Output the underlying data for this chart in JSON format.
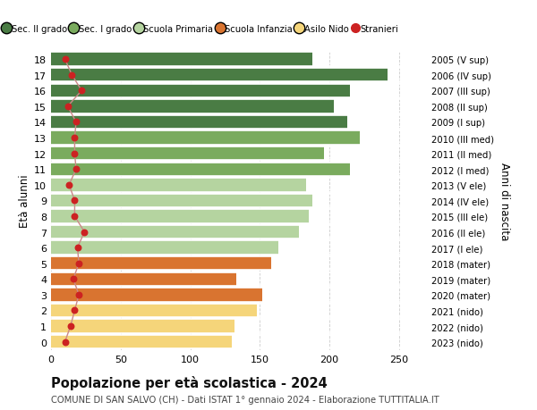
{
  "ages": [
    18,
    17,
    16,
    15,
    14,
    13,
    12,
    11,
    10,
    9,
    8,
    7,
    6,
    5,
    4,
    3,
    2,
    1,
    0
  ],
  "right_labels": [
    "2005 (V sup)",
    "2006 (IV sup)",
    "2007 (III sup)",
    "2008 (II sup)",
    "2009 (I sup)",
    "2010 (III med)",
    "2011 (II med)",
    "2012 (I med)",
    "2013 (V ele)",
    "2014 (IV ele)",
    "2015 (III ele)",
    "2016 (II ele)",
    "2017 (I ele)",
    "2018 (mater)",
    "2019 (mater)",
    "2020 (mater)",
    "2021 (nido)",
    "2022 (nido)",
    "2023 (nido)"
  ],
  "bar_values": [
    188,
    242,
    215,
    203,
    213,
    222,
    196,
    215,
    183,
    188,
    185,
    178,
    163,
    158,
    133,
    152,
    148,
    132,
    130
  ],
  "bar_colors": [
    "#4a7c44",
    "#4a7c44",
    "#4a7c44",
    "#4a7c44",
    "#4a7c44",
    "#7aab5e",
    "#7aab5e",
    "#7aab5e",
    "#b5d4a0",
    "#b5d4a0",
    "#b5d4a0",
    "#b5d4a0",
    "#b5d4a0",
    "#d97430",
    "#d97430",
    "#d97430",
    "#f5d57a",
    "#f5d57a",
    "#f5d57a"
  ],
  "stranieri_values": [
    10,
    15,
    22,
    12,
    18,
    17,
    17,
    18,
    13,
    17,
    17,
    24,
    19,
    20,
    16,
    20,
    17,
    14,
    10
  ],
  "legend_labels": [
    "Sec. II grado",
    "Sec. I grado",
    "Scuola Primaria",
    "Scuola Infanzia",
    "Asilo Nido",
    "Stranieri"
  ],
  "legend_colors": [
    "#4a7c44",
    "#7aab5e",
    "#b5d4a0",
    "#d97430",
    "#f5d57a",
    "#cc2222"
  ],
  "ylabel_left": "Età alunni",
  "ylabel_right": "Anni di nascita",
  "xlim": [
    0,
    270
  ],
  "xticks": [
    0,
    50,
    100,
    150,
    200,
    250
  ],
  "title_bold": "Popolazione per età scolastica - 2024",
  "subtitle": "COMUNE DI SAN SALVO (CH) - Dati ISTAT 1° gennaio 2024 - Elaborazione TUTTITALIA.IT",
  "bg_color": "#ffffff",
  "stranieri_color": "#cc2222",
  "stranieri_line_color": "#cc8888"
}
